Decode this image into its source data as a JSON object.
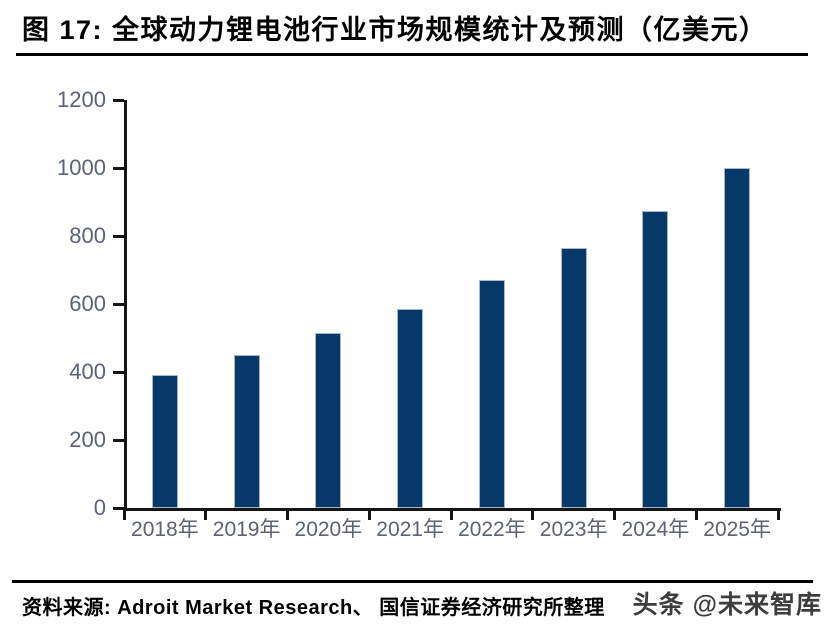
{
  "header": {
    "title": "图 17: 全球动力锂电池行业市场规模统计及预测（亿美元）"
  },
  "chart_data": {
    "type": "bar",
    "title": "全球动力锂电池行业市场规模统计及预测",
    "unit": "亿美元",
    "categories": [
      "2018年",
      "2019年",
      "2020年",
      "2021年",
      "2022年",
      "2023年",
      "2024年",
      "2025年"
    ],
    "values": [
      390,
      450,
      515,
      585,
      670,
      765,
      875,
      1000
    ],
    "xlabel": "",
    "ylabel": "",
    "ylim": [
      0,
      1200
    ],
    "yticks": [
      0,
      200,
      400,
      600,
      800,
      1000,
      1200
    ],
    "grid": false,
    "legend": "none"
  },
  "footer": {
    "source": "资料来源: Adroit Market Research、 国信证券经济研究所整理",
    "watermark": "头条 @未来智库"
  },
  "colors": {
    "bar": "#07386a",
    "bar_edge": "#a9b9cd",
    "axis": "#151515",
    "tick_label": "#5b6472",
    "rule": "#000000"
  }
}
